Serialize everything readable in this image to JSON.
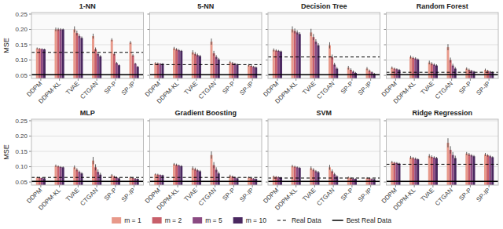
{
  "chart_data": [
    {
      "type": "bar",
      "title": "1-NN",
      "ylabel": "MSE",
      "grid": true,
      "legend": "bottom",
      "categories": [
        "DDPM",
        "DDPM-KL",
        "TVAE",
        "CTGAN",
        "SP-P",
        "SP-IP"
      ],
      "series": [
        {
          "name": "m = 1",
          "color": "#e8998a",
          "values": [
            0.138,
            0.2,
            0.2,
            0.178,
            0.166,
            0.157
          ],
          "errors": [
            0.003,
            0.006,
            0.01,
            0.008,
            0.005,
            0.005
          ]
        },
        {
          "name": "m = 2",
          "color": "#c85f6a",
          "values": [
            0.137,
            0.2,
            0.188,
            0.135,
            0.12,
            0.115
          ],
          "errors": [
            0.002,
            0.005,
            0.008,
            0.006,
            0.005,
            0.004
          ]
        },
        {
          "name": "m = 5",
          "color": "#8b4a82",
          "values": [
            0.136,
            0.2,
            0.178,
            0.12,
            0.09,
            0.088
          ],
          "errors": [
            0.002,
            0.004,
            0.006,
            0.005,
            0.004,
            0.003
          ]
        },
        {
          "name": "m = 10",
          "color": "#4a2860",
          "values": [
            0.135,
            0.2,
            0.172,
            0.112,
            0.083,
            0.078
          ],
          "errors": [
            0.002,
            0.003,
            0.005,
            0.004,
            0.003,
            0.003
          ]
        }
      ],
      "reference_lines": [
        {
          "name": "Real Data",
          "value": 0.125,
          "color": "black",
          "line_style": "dashed"
        },
        {
          "name": "Best Real Data",
          "value": 0.052,
          "color": "black",
          "line_style": "solid"
        }
      ],
      "ylim": [
        0.04,
        0.255
      ],
      "yticks": [
        0.05,
        {
          "value": 0.1,
          "label": "0.10"
        },
        0.15,
        {
          "value": 0.2,
          "label": "0.20"
        },
        0.25
      ]
    },
    {
      "type": "bar",
      "title": "5-NN",
      "grid": true,
      "tick_labels": "x",
      "categories": [
        "DDPM",
        "DDPM-KL",
        "TVAE",
        "CTGAN",
        "SP-P",
        "SP-IP"
      ],
      "series": [
        {
          "name": "m = 1",
          "color": "#e8998a",
          "values": [
            0.09,
            0.138,
            0.125,
            0.16,
            0.093,
            0.083
          ],
          "errors": [
            0.003,
            0.005,
            0.007,
            0.01,
            0.004,
            0.004
          ]
        },
        {
          "name": "m = 2",
          "color": "#c85f6a",
          "values": [
            0.089,
            0.135,
            0.12,
            0.122,
            0.09,
            0.081
          ],
          "errors": [
            0.003,
            0.004,
            0.006,
            0.008,
            0.004,
            0.003
          ]
        },
        {
          "name": "m = 5",
          "color": "#8b4a82",
          "values": [
            0.088,
            0.132,
            0.116,
            0.11,
            0.088,
            0.078
          ],
          "errors": [
            0.002,
            0.004,
            0.005,
            0.006,
            0.003,
            0.003
          ]
        },
        {
          "name": "m = 10",
          "color": "#4a2860",
          "values": [
            0.088,
            0.13,
            0.113,
            0.102,
            0.086,
            0.076
          ],
          "errors": [
            0.002,
            0.003,
            0.004,
            0.005,
            0.003,
            0.003
          ]
        }
      ],
      "reference_lines": [
        {
          "name": "Real Data",
          "value": 0.085,
          "color": "black",
          "line_style": "dashed"
        },
        {
          "name": "Best Real Data",
          "value": 0.052,
          "color": "black",
          "line_style": "solid"
        }
      ],
      "ylim": [
        0.04,
        0.255
      ],
      "yticks": [
        0.05,
        {
          "value": 0.1,
          "label": "0.10"
        },
        0.15,
        {
          "value": 0.2,
          "label": "0.20"
        },
        0.25
      ]
    },
    {
      "type": "bar",
      "title": "Decision Tree",
      "grid": true,
      "tick_labels": "x",
      "categories": [
        "DDPM",
        "DDPM-KL",
        "TVAE",
        "CTGAN",
        "SP-P",
        "SP-IP"
      ],
      "series": [
        {
          "name": "m = 1",
          "color": "#e8998a",
          "values": [
            0.133,
            0.2,
            0.19,
            0.148,
            0.075,
            0.072
          ],
          "errors": [
            0.005,
            0.01,
            0.012,
            0.01,
            0.006,
            0.005
          ]
        },
        {
          "name": "m = 2",
          "color": "#c85f6a",
          "values": [
            0.131,
            0.195,
            0.175,
            0.11,
            0.068,
            0.065
          ],
          "errors": [
            0.004,
            0.008,
            0.01,
            0.008,
            0.005,
            0.004
          ]
        },
        {
          "name": "m = 5",
          "color": "#8b4a82",
          "values": [
            0.13,
            0.19,
            0.16,
            0.085,
            0.062,
            0.06
          ],
          "errors": [
            0.003,
            0.007,
            0.008,
            0.006,
            0.004,
            0.003
          ]
        },
        {
          "name": "m = 10",
          "color": "#4a2860",
          "values": [
            0.128,
            0.185,
            0.148,
            0.072,
            0.058,
            0.055
          ],
          "errors": [
            0.003,
            0.006,
            0.007,
            0.005,
            0.003,
            0.003
          ]
        }
      ],
      "reference_lines": [
        {
          "name": "Real Data",
          "value": 0.11,
          "color": "black",
          "line_style": "dashed"
        },
        {
          "name": "Best Real Data",
          "value": 0.052,
          "color": "black",
          "line_style": "solid"
        }
      ],
      "ylim": [
        0.04,
        0.255
      ],
      "yticks": [
        0.05,
        {
          "value": 0.1,
          "label": "0.10"
        },
        0.15,
        {
          "value": 0.2,
          "label": "0.20"
        },
        0.25
      ]
    },
    {
      "type": "bar",
      "title": "Random Forest",
      "grid": true,
      "tick_labels": "x",
      "categories": [
        "DDPM",
        "DDPM-KL",
        "TVAE",
        "CTGAN",
        "SP-P",
        "SP-IP"
      ],
      "series": [
        {
          "name": "m = 1",
          "color": "#e8998a",
          "values": [
            0.075,
            0.11,
            0.092,
            0.142,
            0.072,
            0.068
          ],
          "errors": [
            0.004,
            0.005,
            0.006,
            0.01,
            0.004,
            0.004
          ]
        },
        {
          "name": "m = 2",
          "color": "#c85f6a",
          "values": [
            0.072,
            0.107,
            0.088,
            0.1,
            0.068,
            0.065
          ],
          "errors": [
            0.003,
            0.004,
            0.005,
            0.008,
            0.004,
            0.003
          ]
        },
        {
          "name": "m = 5",
          "color": "#8b4a82",
          "values": [
            0.07,
            0.105,
            0.085,
            0.082,
            0.065,
            0.062
          ],
          "errors": [
            0.003,
            0.004,
            0.004,
            0.006,
            0.003,
            0.003
          ]
        },
        {
          "name": "m = 10",
          "color": "#4a2860",
          "values": [
            0.068,
            0.102,
            0.082,
            0.072,
            0.062,
            0.06
          ],
          "errors": [
            0.003,
            0.003,
            0.004,
            0.005,
            0.003,
            0.003
          ]
        }
      ],
      "reference_lines": [
        {
          "name": "Real Data",
          "value": 0.06,
          "color": "black",
          "line_style": "dashed"
        },
        {
          "name": "Best Real Data",
          "value": 0.052,
          "color": "black",
          "line_style": "solid"
        }
      ],
      "ylim": [
        0.04,
        0.255
      ],
      "yticks": [
        0.05,
        {
          "value": 0.1,
          "label": "0.10"
        },
        0.15,
        {
          "value": 0.2,
          "label": "0.20"
        },
        0.25
      ]
    },
    {
      "type": "bar",
      "title": "MLP",
      "ylabel": "MSE",
      "grid": true,
      "categories": [
        "DDPM",
        "DDPM-KL",
        "TVAE",
        "CTGAN",
        "SP-P",
        "SP-IP"
      ],
      "series": [
        {
          "name": "m = 1",
          "color": "#e8998a",
          "values": [
            0.065,
            0.103,
            0.098,
            0.12,
            0.072,
            0.065
          ],
          "errors": [
            0.002,
            0.004,
            0.006,
            0.012,
            0.004,
            0.003
          ]
        },
        {
          "name": "m = 2",
          "color": "#c85f6a",
          "values": [
            0.064,
            0.101,
            0.09,
            0.098,
            0.068,
            0.063
          ],
          "errors": [
            0.002,
            0.003,
            0.005,
            0.01,
            0.003,
            0.003
          ]
        },
        {
          "name": "m = 5",
          "color": "#8b4a82",
          "values": [
            0.063,
            0.099,
            0.083,
            0.083,
            0.065,
            0.061
          ],
          "errors": [
            0.002,
            0.003,
            0.004,
            0.008,
            0.003,
            0.002
          ]
        },
        {
          "name": "m = 10",
          "color": "#4a2860",
          "values": [
            0.062,
            0.098,
            0.078,
            0.074,
            0.062,
            0.06
          ],
          "errors": [
            0.002,
            0.003,
            0.004,
            0.006,
            0.003,
            0.002
          ]
        }
      ],
      "reference_lines": [
        {
          "name": "Real Data",
          "value": 0.065,
          "color": "black",
          "line_style": "dashed"
        },
        {
          "name": "Best Real Data",
          "value": 0.052,
          "color": "black",
          "line_style": "solid"
        }
      ],
      "ylim": [
        0.04,
        0.255
      ],
      "yticks": [
        0.05,
        {
          "value": 0.1,
          "label": "0.10"
        },
        0.15,
        {
          "value": 0.2,
          "label": "0.20"
        },
        0.25
      ]
    },
    {
      "type": "bar",
      "title": "Gradient Boosting",
      "grid": true,
      "tick_labels": "x",
      "categories": [
        "DDPM",
        "DDPM-KL",
        "TVAE",
        "CTGAN",
        "SP-P",
        "SP-IP"
      ],
      "series": [
        {
          "name": "m = 1",
          "color": "#e8998a",
          "values": [
            0.075,
            0.108,
            0.095,
            0.138,
            0.07,
            0.065
          ],
          "errors": [
            0.003,
            0.004,
            0.006,
            0.012,
            0.004,
            0.003
          ]
        },
        {
          "name": "m = 2",
          "color": "#c85f6a",
          "values": [
            0.074,
            0.106,
            0.092,
            0.105,
            0.068,
            0.063
          ],
          "errors": [
            0.003,
            0.004,
            0.005,
            0.01,
            0.003,
            0.003
          ]
        },
        {
          "name": "m = 5",
          "color": "#8b4a82",
          "values": [
            0.073,
            0.104,
            0.088,
            0.09,
            0.065,
            0.061
          ],
          "errors": [
            0.002,
            0.003,
            0.004,
            0.008,
            0.003,
            0.002
          ]
        },
        {
          "name": "m = 10",
          "color": "#4a2860",
          "values": [
            0.072,
            0.102,
            0.085,
            0.078,
            0.062,
            0.06
          ],
          "errors": [
            0.002,
            0.003,
            0.004,
            0.006,
            0.003,
            0.002
          ]
        }
      ],
      "reference_lines": [
        {
          "name": "Real Data",
          "value": 0.065,
          "color": "black",
          "line_style": "dashed"
        },
        {
          "name": "Best Real Data",
          "value": 0.052,
          "color": "black",
          "line_style": "solid"
        }
      ],
      "ylim": [
        0.04,
        0.255
      ],
      "yticks": [
        0.05,
        {
          "value": 0.1,
          "label": "0.10"
        },
        0.15,
        {
          "value": 0.2,
          "label": "0.20"
        },
        0.25
      ]
    },
    {
      "type": "bar",
      "title": "SVM",
      "grid": true,
      "tick_labels": "x",
      "categories": [
        "DDPM",
        "DDPM-KL",
        "TVAE",
        "CTGAN",
        "SP-P",
        "SP-IP"
      ],
      "series": [
        {
          "name": "m = 1",
          "color": "#e8998a",
          "values": [
            0.068,
            0.102,
            0.095,
            0.098,
            0.065,
            0.063
          ],
          "errors": [
            0.003,
            0.004,
            0.006,
            0.008,
            0.003,
            0.003
          ]
        },
        {
          "name": "m = 2",
          "color": "#c85f6a",
          "values": [
            0.067,
            0.1,
            0.09,
            0.085,
            0.063,
            0.062
          ],
          "errors": [
            0.002,
            0.003,
            0.005,
            0.006,
            0.003,
            0.002
          ]
        },
        {
          "name": "m = 5",
          "color": "#8b4a82",
          "values": [
            0.066,
            0.098,
            0.085,
            0.075,
            0.061,
            0.06
          ],
          "errors": [
            0.002,
            0.003,
            0.004,
            0.005,
            0.002,
            0.002
          ]
        },
        {
          "name": "m = 10",
          "color": "#4a2860",
          "values": [
            0.065,
            0.096,
            0.082,
            0.068,
            0.06,
            0.059
          ],
          "errors": [
            0.002,
            0.003,
            0.004,
            0.004,
            0.002,
            0.002
          ]
        }
      ],
      "reference_lines": [
        {
          "name": "Real Data",
          "value": 0.063,
          "color": "black",
          "line_style": "dashed"
        },
        {
          "name": "Best Real Data",
          "value": 0.052,
          "color": "black",
          "line_style": "solid"
        }
      ],
      "ylim": [
        0.04,
        0.255
      ],
      "yticks": [
        0.05,
        {
          "value": 0.1,
          "label": "0.10"
        },
        0.15,
        {
          "value": 0.2,
          "label": "0.20"
        },
        0.25
      ]
    },
    {
      "type": "bar",
      "title": "Ridge Regression",
      "grid": true,
      "tick_labels": "x",
      "categories": [
        "DDPM",
        "DDPM-KL",
        "TVAE",
        "CTGAN",
        "SP-P",
        "SP-IP"
      ],
      "series": [
        {
          "name": "m = 1",
          "color": "#e8998a",
          "values": [
            0.115,
            0.13,
            0.135,
            0.178,
            0.143,
            0.14
          ],
          "errors": [
            0.004,
            0.005,
            0.006,
            0.015,
            0.005,
            0.005
          ]
        },
        {
          "name": "m = 2",
          "color": "#c85f6a",
          "values": [
            0.113,
            0.128,
            0.132,
            0.155,
            0.14,
            0.137
          ],
          "errors": [
            0.003,
            0.004,
            0.005,
            0.012,
            0.005,
            0.004
          ]
        },
        {
          "name": "m = 5",
          "color": "#8b4a82",
          "values": [
            0.112,
            0.126,
            0.13,
            0.138,
            0.137,
            0.134
          ],
          "errors": [
            0.003,
            0.004,
            0.004,
            0.01,
            0.004,
            0.004
          ]
        },
        {
          "name": "m = 10",
          "color": "#4a2860",
          "values": [
            0.11,
            0.124,
            0.128,
            0.128,
            0.134,
            0.131
          ],
          "errors": [
            0.003,
            0.003,
            0.004,
            0.008,
            0.004,
            0.003
          ]
        }
      ],
      "reference_lines": [
        {
          "name": "Real Data",
          "value": 0.108,
          "color": "black",
          "line_style": "dashed"
        },
        {
          "name": "Best Real Data",
          "value": 0.052,
          "color": "black",
          "line_style": "solid"
        }
      ],
      "ylim": [
        0.04,
        0.255
      ],
      "yticks": [
        0.05,
        {
          "value": 0.1,
          "label": "0.10"
        },
        0.15,
        {
          "value": 0.2,
          "label": "0.20"
        },
        0.25
      ]
    }
  ]
}
